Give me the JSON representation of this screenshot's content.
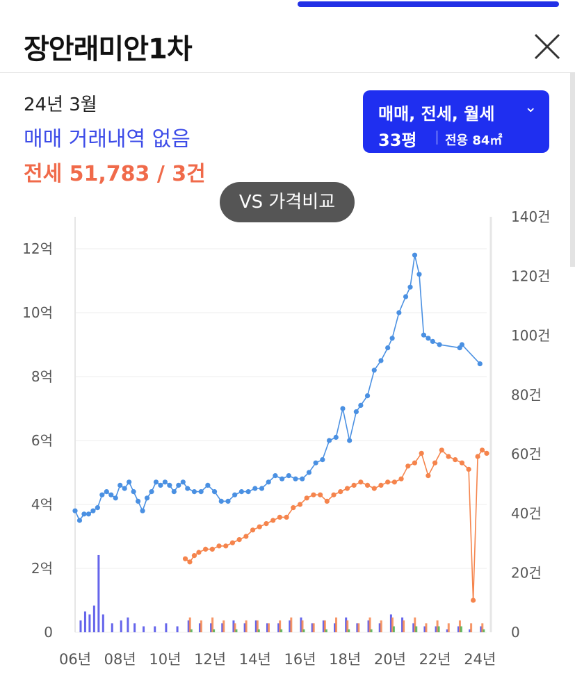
{
  "header": {
    "title": "장안래미안1차"
  },
  "summary": {
    "date": "24년 3월",
    "sale_text": "매매 거래내역 없음",
    "jeonse_text": "전세 51,783 / 3건"
  },
  "filter": {
    "types": "매매, 전세, 월세",
    "pyeong": "33평",
    "area": "전용 84㎡"
  },
  "compare_button": "VS 가격비교",
  "colors": {
    "sale": "#4a90e2",
    "jeonse": "#f5844c",
    "monthly": "#4caf50",
    "sale_bar": "#4a4ae8",
    "accent": "#1f2ff0"
  },
  "chart_data": {
    "type": "line",
    "x_ticks": [
      "06년",
      "08년",
      "10년",
      "12년",
      "14년",
      "16년",
      "18년",
      "20년",
      "22년",
      "24년"
    ],
    "y_left_ticks": [
      "0",
      "2억",
      "4억",
      "6억",
      "8억",
      "10억",
      "12억"
    ],
    "y_right_ticks": [
      "0",
      "20건",
      "40건",
      "60건",
      "80건",
      "100건",
      "120건",
      "140건"
    ],
    "ylim_left": [
      0,
      13
    ],
    "ylim_right": [
      0,
      140
    ],
    "x_range": [
      2006.0,
      2024.3
    ],
    "grid": true,
    "series": [
      {
        "key": "sale",
        "x": [
          2006.0,
          2006.2,
          2006.4,
          2006.6,
          2006.8,
          2007.0,
          2007.2,
          2007.4,
          2007.6,
          2007.8,
          2008.0,
          2008.2,
          2008.4,
          2008.6,
          2008.8,
          2009.0,
          2009.2,
          2009.4,
          2009.6,
          2009.8,
          2010.0,
          2010.2,
          2010.4,
          2010.6,
          2010.8,
          2011.0,
          2011.3,
          2011.6,
          2011.9,
          2012.2,
          2012.5,
          2012.8,
          2013.1,
          2013.4,
          2013.7,
          2014.0,
          2014.3,
          2014.6,
          2014.9,
          2015.2,
          2015.5,
          2015.8,
          2016.1,
          2016.4,
          2016.7,
          2017.0,
          2017.3,
          2017.6,
          2017.9,
          2018.2,
          2018.5,
          2018.7,
          2019.0,
          2019.3,
          2019.6,
          2019.9,
          2020.1,
          2020.4,
          2020.7,
          2020.9,
          2021.1,
          2021.3,
          2021.5,
          2021.7,
          2021.9,
          2022.2,
          2023.1,
          2023.2,
          2024.0
        ],
        "y": [
          3.8,
          3.5,
          3.7,
          3.7,
          3.8,
          3.9,
          4.3,
          4.4,
          4.3,
          4.2,
          4.6,
          4.5,
          4.7,
          4.4,
          4.1,
          3.8,
          4.2,
          4.4,
          4.7,
          4.6,
          4.7,
          4.6,
          4.4,
          4.6,
          4.7,
          4.5,
          4.4,
          4.4,
          4.6,
          4.4,
          4.1,
          4.1,
          4.3,
          4.4,
          4.4,
          4.5,
          4.5,
          4.7,
          4.9,
          4.8,
          4.9,
          4.8,
          4.8,
          5.0,
          5.3,
          5.4,
          6.0,
          6.1,
          7.0,
          6.0,
          6.9,
          7.1,
          7.4,
          8.2,
          8.5,
          8.9,
          9.2,
          10.0,
          10.5,
          10.8,
          11.8,
          11.2,
          9.3,
          9.2,
          9.1,
          9.0,
          8.9,
          9.0,
          8.4
        ]
      },
      {
        "key": "jeonse",
        "x": [
          2010.9,
          2011.1,
          2011.3,
          2011.5,
          2011.8,
          2012.1,
          2012.4,
          2012.7,
          2013.0,
          2013.3,
          2013.6,
          2013.9,
          2014.2,
          2014.5,
          2014.8,
          2015.1,
          2015.4,
          2015.7,
          2016.0,
          2016.3,
          2016.6,
          2016.9,
          2017.2,
          2017.5,
          2017.8,
          2018.1,
          2018.4,
          2018.7,
          2019.0,
          2019.3,
          2019.6,
          2019.9,
          2020.2,
          2020.5,
          2020.8,
          2021.1,
          2021.4,
          2021.7,
          2022.0,
          2022.3,
          2022.6,
          2022.9,
          2023.2,
          2023.5,
          2023.7,
          2023.9,
          2024.1,
          2024.3
        ],
        "y": [
          2.3,
          2.2,
          2.4,
          2.5,
          2.6,
          2.6,
          2.7,
          2.7,
          2.8,
          2.9,
          3.0,
          3.2,
          3.3,
          3.4,
          3.5,
          3.6,
          3.6,
          3.9,
          4.0,
          4.2,
          4.3,
          4.3,
          4.1,
          4.3,
          4.4,
          4.5,
          4.6,
          4.7,
          4.6,
          4.5,
          4.6,
          4.7,
          4.7,
          4.8,
          5.2,
          5.3,
          5.6,
          4.9,
          5.3,
          5.7,
          5.5,
          5.4,
          5.3,
          5.1,
          1.0,
          5.5,
          5.7,
          5.6
        ]
      }
    ],
    "volume_series": [
      {
        "key": "sale_volume",
        "x": [
          2006.2,
          2006.4,
          2006.6,
          2006.8,
          2007.0,
          2007.2,
          2007.6,
          2008.0,
          2008.3,
          2008.6,
          2009.0,
          2009.5,
          2010.0,
          2010.5,
          2011.0,
          2011.5,
          2012.0,
          2012.5,
          2013.0,
          2013.5,
          2014.0,
          2014.5,
          2015.0,
          2015.5,
          2016.0,
          2016.5,
          2017.0,
          2017.5,
          2018.0,
          2018.5,
          2019.0,
          2019.5,
          2020.0,
          2020.5,
          2021.0,
          2021.5,
          2022.0,
          2022.5,
          2023.0,
          2023.5,
          2024.0
        ],
        "y": [
          4,
          7,
          6,
          9,
          26,
          6,
          3,
          4,
          5,
          3,
          2,
          2,
          3,
          2,
          4,
          3,
          3,
          3,
          4,
          3,
          4,
          3,
          3,
          4,
          5,
          3,
          4,
          3,
          5,
          3,
          4,
          3,
          6,
          5,
          3,
          2,
          2,
          1,
          2,
          1,
          2
        ]
      },
      {
        "key": "jeonse_volume",
        "x": [
          2011.0,
          2011.5,
          2012.0,
          2012.5,
          2013.0,
          2013.5,
          2014.0,
          2014.5,
          2015.0,
          2015.5,
          2016.0,
          2016.5,
          2017.0,
          2017.5,
          2018.0,
          2018.5,
          2019.0,
          2019.5,
          2020.0,
          2020.5,
          2021.0,
          2021.5,
          2022.0,
          2022.5,
          2023.0,
          2023.5,
          2024.0
        ],
        "y": [
          5,
          4,
          5,
          4,
          3,
          4,
          4,
          3,
          4,
          5,
          4,
          3,
          4,
          5,
          4,
          3,
          5,
          4,
          5,
          4,
          5,
          3,
          4,
          3,
          4,
          3,
          3
        ]
      },
      {
        "key": "monthly_volume",
        "x": [
          2011.0,
          2012.0,
          2013.0,
          2014.0,
          2015.0,
          2016.0,
          2017.0,
          2018.0,
          2019.0,
          2020.0,
          2021.0,
          2022.0,
          2023.0,
          2024.0
        ],
        "y": [
          1,
          1,
          1,
          1,
          1,
          1,
          1,
          1,
          1,
          2,
          2,
          2,
          2,
          1
        ]
      }
    ]
  }
}
